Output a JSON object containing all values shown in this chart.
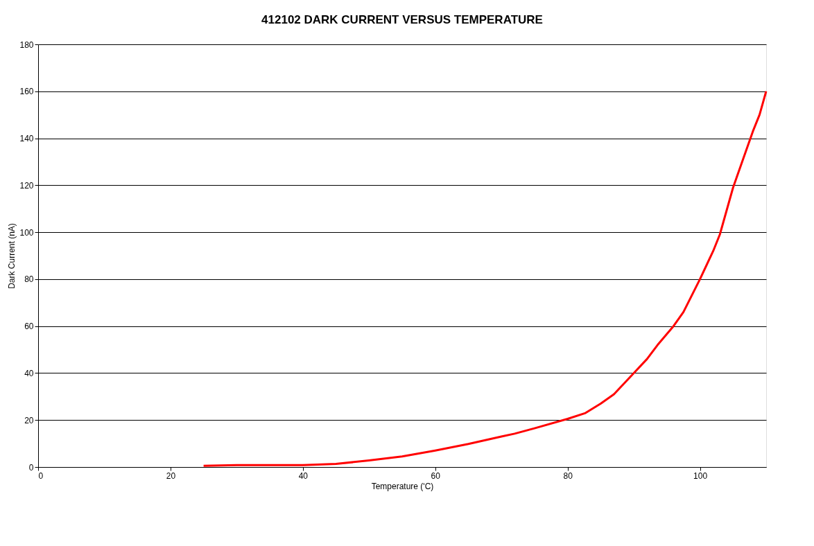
{
  "chart_data": {
    "type": "line",
    "title": "412102 DARK CURRENT VERSUS TEMPERATURE",
    "xlabel": "Temperature (ʹC)",
    "ylabel": "Dark Current (nA)",
    "x": [
      25,
      30,
      35,
      40,
      45,
      50,
      55,
      60,
      65,
      70,
      72,
      75,
      80,
      82.7,
      85,
      87,
      90,
      92,
      93.6,
      96,
      97.5,
      100,
      102,
      103,
      105,
      107,
      108,
      109,
      110
    ],
    "series": [
      {
        "color": "#ff0000",
        "values": [
          0.5,
          0.8,
          0.8,
          0.8,
          1.3,
          2.8,
          4.5,
          7,
          9.8,
          13,
          14.2,
          16.5,
          20.5,
          23,
          27,
          31,
          40,
          46,
          52,
          60,
          66,
          80,
          92,
          99,
          119,
          135,
          143,
          150,
          160
        ]
      }
    ],
    "xlim": [
      0,
      110
    ],
    "xticks": [
      0,
      20,
      40,
      60,
      80,
      100
    ],
    "ylim": [
      0,
      180
    ],
    "yticks": [
      0,
      20,
      40,
      60,
      80,
      100,
      120,
      140,
      160,
      180
    ],
    "grid": "y",
    "marker": "none",
    "line_style": "solid"
  }
}
